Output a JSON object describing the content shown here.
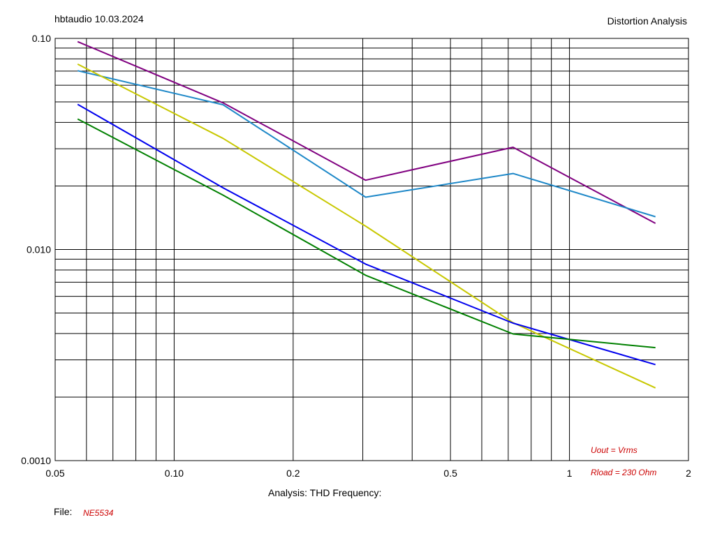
{
  "header": {
    "left_text": "hbtaudio  10.03.2024",
    "right_text": "Distortion Analysis"
  },
  "footer": {
    "xaxis_caption": "Analysis: THD   Frequency:",
    "file_label": "File:",
    "file_name": "NE5534"
  },
  "annotations": {
    "line1": "Uout = Vrms",
    "line2": "Rload = 230 Ohm"
  },
  "chart_data": {
    "type": "line",
    "title": "Distortion Analysis",
    "xlabel": "Analysis: THD   Frequency:",
    "ylabel": "",
    "xscale": "log",
    "yscale": "log",
    "xlim": [
      0.05,
      2
    ],
    "ylim": [
      0.001,
      0.1
    ],
    "grid": true,
    "x_ticks": [
      {
        "value": 0.05,
        "label": "0.05"
      },
      {
        "value": 0.1,
        "label": "0.10"
      },
      {
        "value": 0.2,
        "label": "0.2"
      },
      {
        "value": 0.5,
        "label": "0.5"
      },
      {
        "value": 1,
        "label": "1"
      },
      {
        "value": 2,
        "label": "2"
      }
    ],
    "y_ticks": [
      {
        "value": 0.001,
        "label": "0.0010"
      },
      {
        "value": 0.01,
        "label": "0.010"
      },
      {
        "value": 0.1,
        "label": "0.10"
      }
    ],
    "x_grid": [
      0.06,
      0.07,
      0.08,
      0.09,
      0.1,
      0.2,
      0.3,
      0.4,
      0.5,
      0.6,
      0.7,
      0.8,
      0.9,
      1
    ],
    "y_grid": [
      0.002,
      0.003,
      0.004,
      0.005,
      0.006,
      0.007,
      0.008,
      0.009,
      0.01,
      0.02,
      0.03,
      0.04,
      0.05,
      0.06,
      0.07,
      0.08,
      0.09
    ],
    "x": [
      0.057,
      0.133,
      0.305,
      0.72,
      1.65
    ],
    "series": [
      {
        "color": "#800080",
        "values": [
          0.0965,
          0.0495,
          0.0213,
          0.0305,
          0.0133
        ]
      },
      {
        "color": "#1e88c8",
        "values": [
          0.0703,
          0.0485,
          0.0177,
          0.0229,
          0.0143
        ]
      },
      {
        "color": "#c8c800",
        "values": [
          0.0755,
          0.0336,
          0.0129,
          0.0045,
          0.00221
        ]
      },
      {
        "color": "#0000ee",
        "values": [
          0.0487,
          0.0196,
          0.00853,
          0.00448,
          0.00285
        ]
      },
      {
        "color": "#008000",
        "values": [
          0.0415,
          0.0181,
          0.00755,
          0.00398,
          0.00343
        ]
      }
    ]
  }
}
